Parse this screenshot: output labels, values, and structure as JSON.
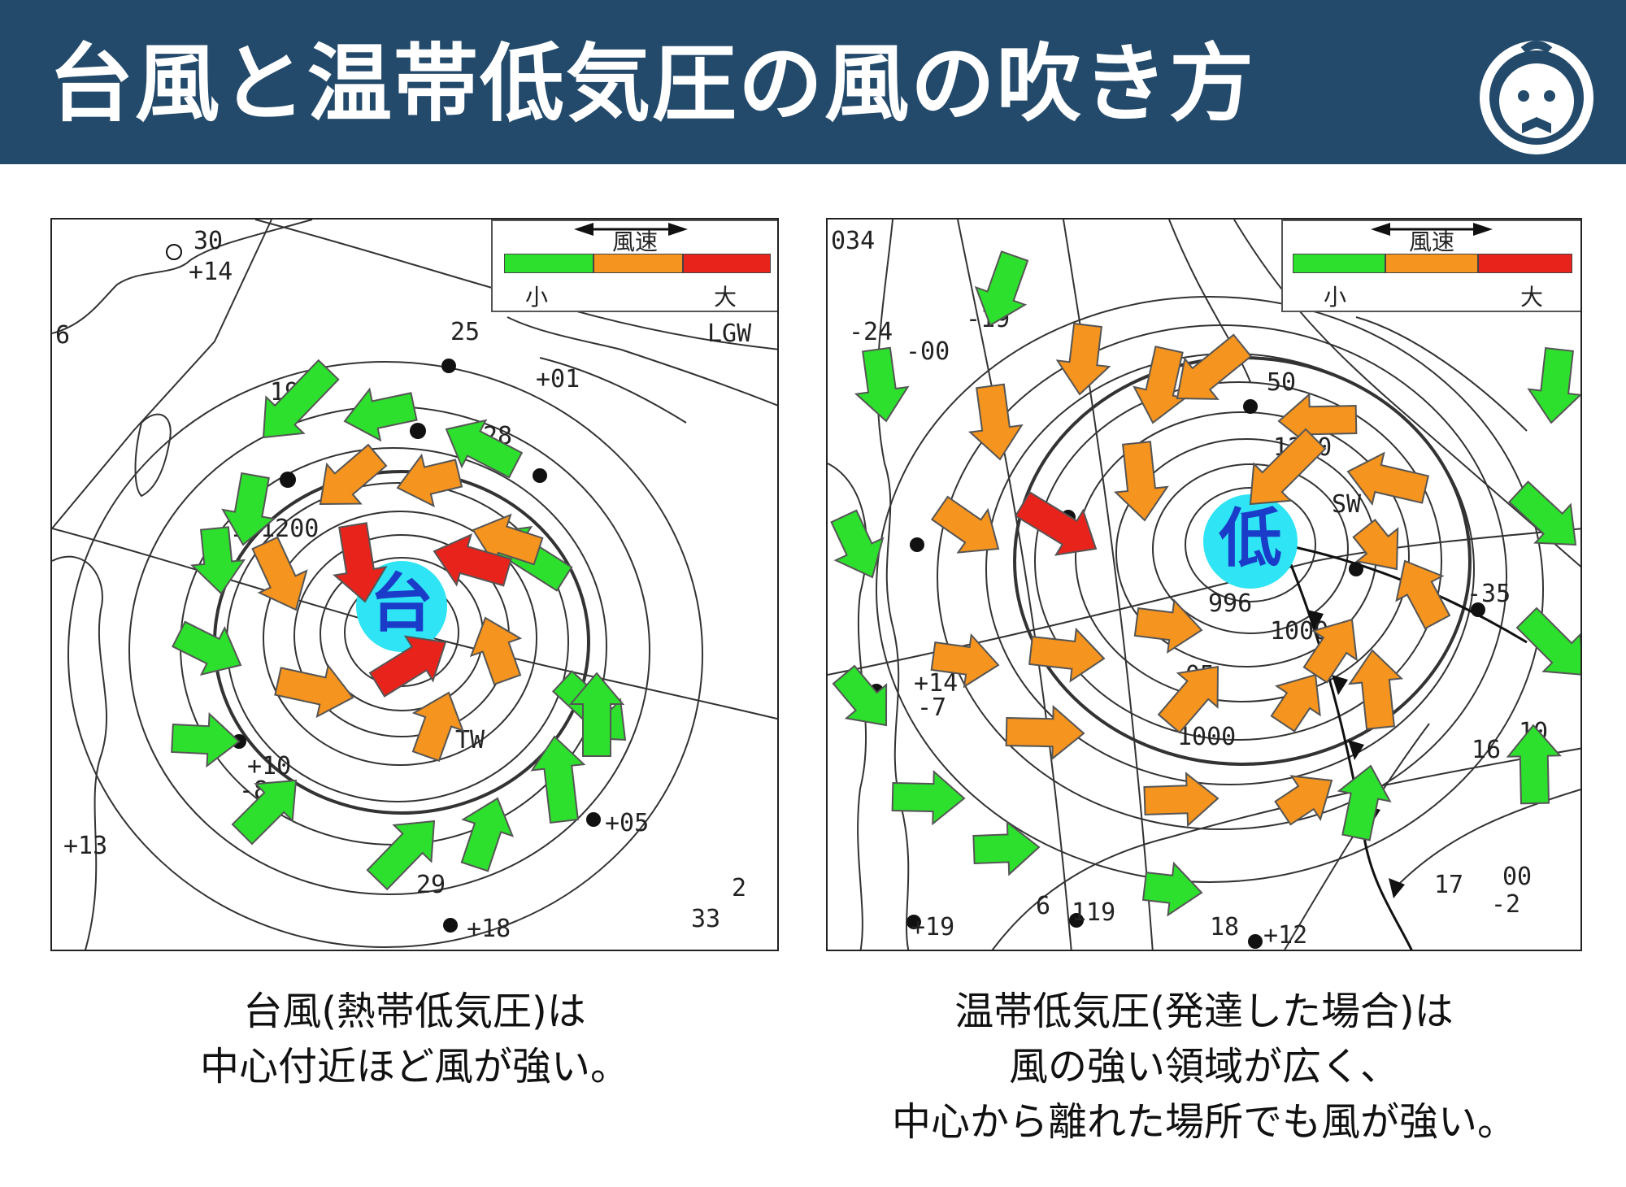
{
  "header": {
    "title": "台風と温帯低気圧の風の吹き方",
    "background_color": "#234a6b",
    "logo_icon": "character-face-icon"
  },
  "legend": {
    "title": "風速",
    "small_label": "小",
    "large_label": "大",
    "colors": {
      "weak": "#2ee02e",
      "medium": "#f5941e",
      "strong": "#e8231c"
    },
    "arrow_icon": "double-headed-arrow-icon"
  },
  "left_panel": {
    "center_label": "台",
    "center_color": "#2fe4f4",
    "map_labels": [
      "25",
      "LGW",
      "190",
      "+01",
      "6",
      "181200",
      "TW",
      "+10",
      "-8",
      "+05",
      "+13",
      "29",
      "+18",
      "33",
      "28",
      "+14",
      "30",
      "2"
    ],
    "caption_lines": [
      "台風(熱帯低気圧)は",
      "中心付近ほど風が強い。"
    ]
  },
  "right_panel": {
    "center_label": "低",
    "center_color": "#2fe4f4",
    "map_labels": [
      "034",
      "-19",
      "-00",
      "-24",
      "50",
      "1200",
      "SW",
      "-35",
      "1000",
      "05",
      "996",
      "10",
      "16",
      "1000",
      "17",
      "00",
      "+14",
      "-7",
      "+19",
      "119",
      "6",
      "18",
      "+12",
      "-2"
    ],
    "caption_lines": [
      "温帯低気圧(発達した場合)は",
      "風の強い領域が広く、",
      "中心から離れた場所でも風が強い。"
    ]
  }
}
